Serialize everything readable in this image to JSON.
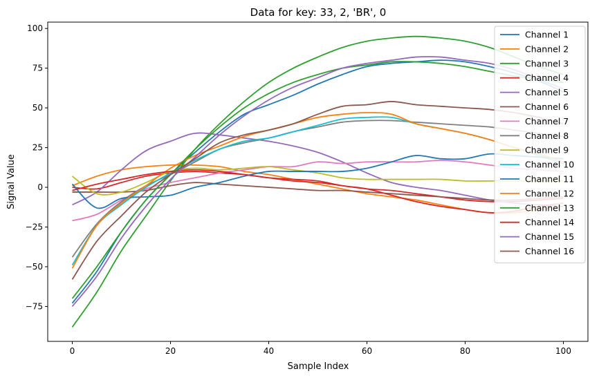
{
  "chart_data": {
    "type": "line",
    "title": "Data for key: 33, 2, 'BR', 0",
    "xlabel": "Sample Index",
    "ylabel": "Signal Value",
    "xlim": [
      -5,
      105
    ],
    "ylim": [
      -97,
      104
    ],
    "x_ticks": [
      0,
      20,
      40,
      60,
      80,
      100
    ],
    "y_ticks": [
      -75,
      -50,
      -25,
      0,
      25,
      50,
      75,
      100
    ],
    "grid": false,
    "legend_position": "top-right",
    "x": [
      0,
      5,
      10,
      15,
      20,
      25,
      30,
      35,
      40,
      45,
      50,
      55,
      60,
      65,
      70,
      75,
      80,
      85,
      90,
      95,
      100
    ],
    "series": [
      {
        "name": "Channel 1",
        "color": "#1f77b4",
        "values": [
          -73,
          -53,
          -28,
          -8,
          8,
          22,
          35,
          46,
          52,
          58,
          65,
          71,
          76,
          78,
          79,
          80,
          79,
          76,
          72,
          67,
          60
        ]
      },
      {
        "name": "Channel 2",
        "color": "#ff7f0e",
        "values": [
          1,
          7,
          11,
          13,
          14,
          14,
          13,
          10,
          8,
          5,
          2,
          -1,
          -4,
          -6,
          -8,
          -11,
          -14,
          -16,
          -16,
          -14,
          -12
        ]
      },
      {
        "name": "Channel 3",
        "color": "#2ca02c",
        "values": [
          -88,
          -66,
          -40,
          -18,
          4,
          24,
          40,
          54,
          66,
          75,
          82,
          88,
          92,
          94,
          95,
          94,
          92,
          88,
          82,
          76,
          71
        ]
      },
      {
        "name": "Channel 4",
        "color": "#d62728",
        "values": [
          0,
          -1,
          3,
          7,
          9,
          10,
          9,
          8,
          6,
          4,
          3,
          1,
          -1,
          -2,
          -4,
          -6,
          -8,
          -9,
          -9,
          -8,
          -7
        ]
      },
      {
        "name": "Channel 5",
        "color": "#9467bd",
        "values": [
          -11,
          -3,
          11,
          23,
          29,
          34,
          33,
          31,
          29,
          26,
          22,
          16,
          9,
          3,
          0,
          -2,
          -5,
          -8,
          -10,
          -11,
          -12
        ]
      },
      {
        "name": "Channel 6",
        "color": "#8c564b",
        "values": [
          -3,
          -3,
          -3,
          -2,
          1,
          3,
          2,
          1,
          0,
          -1,
          -2,
          -2,
          -3,
          -4,
          -5,
          -6,
          -7,
          -8,
          -8,
          -7,
          -6
        ]
      },
      {
        "name": "Channel 7",
        "color": "#e377c2",
        "values": [
          -21,
          -17,
          -8,
          -1,
          3,
          6,
          9,
          11,
          13,
          13,
          16,
          15,
          16,
          16,
          16,
          17,
          16,
          14,
          12,
          11,
          10
        ]
      },
      {
        "name": "Channel 8",
        "color": "#7f7f7f",
        "values": [
          -44,
          -23,
          -9,
          1,
          8,
          16,
          24,
          28,
          31,
          35,
          38,
          41,
          42,
          42,
          41,
          40,
          39,
          38,
          36,
          34,
          32
        ]
      },
      {
        "name": "Channel 9",
        "color": "#bcbd22",
        "values": [
          7,
          -4,
          -3,
          3,
          10,
          12,
          11,
          12,
          13,
          11,
          9,
          6,
          5,
          5,
          5,
          5,
          4,
          4,
          4,
          4,
          4
        ]
      },
      {
        "name": "Channel 10",
        "color": "#17becf",
        "values": [
          -49,
          -24,
          -11,
          0,
          9,
          17,
          24,
          29,
          31,
          35,
          39,
          43,
          44,
          44,
          40,
          37,
          34,
          30,
          25,
          20,
          15
        ]
      },
      {
        "name": "Channel 11",
        "color": "#1f77b4",
        "values": [
          2,
          -13,
          -7,
          -6,
          -5,
          0,
          3,
          7,
          10,
          10,
          10,
          10,
          12,
          16,
          20,
          18,
          18,
          21,
          20,
          19,
          18
        ]
      },
      {
        "name": "Channel 12",
        "color": "#ff7f0e",
        "values": [
          -51,
          -24,
          -10,
          1,
          12,
          20,
          26,
          32,
          36,
          40,
          44,
          46,
          47,
          46,
          40,
          37,
          34,
          30,
          25,
          21,
          16
        ]
      },
      {
        "name": "Channel 13",
        "color": "#2ca02c",
        "values": [
          -70,
          -50,
          -28,
          -8,
          8,
          24,
          38,
          50,
          59,
          66,
          71,
          75,
          77,
          79,
          79,
          78,
          76,
          73,
          70,
          68,
          66
        ]
      },
      {
        "name": "Channel 14",
        "color": "#d62728",
        "values": [
          -2,
          2,
          5,
          8,
          10,
          11,
          10,
          8,
          6,
          5,
          4,
          1,
          -1,
          -5,
          -9,
          -12,
          -14,
          -16,
          -15,
          -12,
          -10
        ]
      },
      {
        "name": "Channel 15",
        "color": "#9467bd",
        "values": [
          -75,
          -56,
          -32,
          -12,
          5,
          19,
          33,
          45,
          55,
          63,
          69,
          75,
          78,
          80,
          82,
          82,
          80,
          78,
          74,
          68,
          62
        ]
      },
      {
        "name": "Channel 16",
        "color": "#8c564b",
        "values": [
          -58,
          -34,
          -18,
          -3,
          8,
          18,
          28,
          33,
          36,
          40,
          46,
          51,
          52,
          54,
          52,
          51,
          50,
          49,
          47,
          44,
          40
        ]
      }
    ]
  }
}
